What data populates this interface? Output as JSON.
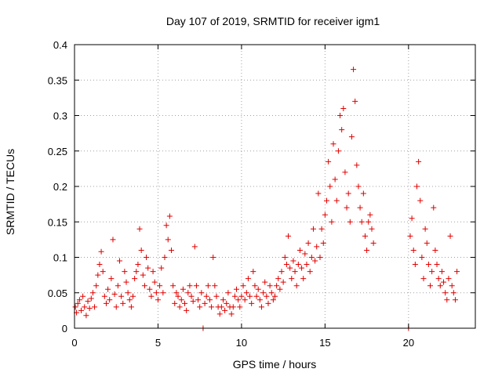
{
  "chart_data": {
    "type": "scatter",
    "title": "Day 107 of 2019, SRMTID for receiver igm1",
    "xlabel": "GPS time / hours",
    "ylabel": "SRMTID / TECUs",
    "xlim": [
      0,
      24
    ],
    "ylim": [
      0,
      0.4
    ],
    "xticks": [
      0,
      5,
      10,
      15,
      20
    ],
    "xtick_labels": [
      "0",
      "5",
      "10",
      "15",
      "20"
    ],
    "yticks": [
      0,
      0.05,
      0.1,
      0.15,
      0.2,
      0.25,
      0.3,
      0.35,
      0.4
    ],
    "ytick_labels": [
      "0",
      "0.05",
      "0.1",
      "0.15",
      "0.2",
      "0.25",
      "0.3",
      "0.35",
      "0.4"
    ],
    "grid": true,
    "marker": "plus",
    "color": "#e00000",
    "series": [
      {
        "name": "igm1",
        "points": [
          [
            0.05,
            0.03
          ],
          [
            0.12,
            0.022
          ],
          [
            0.2,
            0.035
          ],
          [
            0.3,
            0.04
          ],
          [
            0.4,
            0.025
          ],
          [
            0.5,
            0.045
          ],
          [
            0.6,
            0.03
          ],
          [
            0.7,
            0.018
          ],
          [
            0.8,
            0.038
          ],
          [
            0.9,
            0.028
          ],
          [
            1.0,
            0.042
          ],
          [
            1.1,
            0.05
          ],
          [
            1.2,
            0.03
          ],
          [
            1.3,
            0.06
          ],
          [
            1.4,
            0.075
          ],
          [
            1.5,
            0.09
          ],
          [
            1.6,
            0.108
          ],
          [
            1.7,
            0.08
          ],
          [
            1.8,
            0.045
          ],
          [
            1.9,
            0.035
          ],
          [
            2.0,
            0.055
          ],
          [
            2.1,
            0.04
          ],
          [
            2.2,
            0.07
          ],
          [
            2.3,
            0.125
          ],
          [
            2.4,
            0.048
          ],
          [
            2.5,
            0.03
          ],
          [
            2.6,
            0.06
          ],
          [
            2.7,
            0.095
          ],
          [
            2.8,
            0.045
          ],
          [
            2.9,
            0.035
          ],
          [
            3.0,
            0.08
          ],
          [
            3.1,
            0.065
          ],
          [
            3.2,
            0.05
          ],
          [
            3.3,
            0.04
          ],
          [
            3.4,
            0.03
          ],
          [
            3.5,
            0.045
          ],
          [
            3.6,
            0.07
          ],
          [
            3.7,
            0.08
          ],
          [
            3.8,
            0.09
          ],
          [
            3.9,
            0.14
          ],
          [
            4.0,
            0.11
          ],
          [
            4.1,
            0.075
          ],
          [
            4.2,
            0.06
          ],
          [
            4.3,
            0.1
          ],
          [
            4.4,
            0.085
          ],
          [
            4.5,
            0.055
          ],
          [
            4.6,
            0.045
          ],
          [
            4.7,
            0.08
          ],
          [
            4.8,
            0.065
          ],
          [
            4.9,
            0.05
          ],
          [
            5.0,
            0.04
          ],
          [
            5.1,
            0.06
          ],
          [
            5.2,
            0.085
          ],
          [
            5.3,
            0.05
          ],
          [
            5.4,
            0.1
          ],
          [
            5.5,
            0.145
          ],
          [
            5.6,
            0.125
          ],
          [
            5.7,
            0.158
          ],
          [
            5.8,
            0.11
          ],
          [
            5.9,
            0.06
          ],
          [
            6.0,
            0.035
          ],
          [
            6.1,
            0.05
          ],
          [
            6.2,
            0.045
          ],
          [
            6.3,
            0.03
          ],
          [
            6.4,
            0.04
          ],
          [
            6.5,
            0.055
          ],
          [
            6.6,
            0.035
          ],
          [
            6.7,
            0.025
          ],
          [
            6.8,
            0.05
          ],
          [
            6.9,
            0.06
          ],
          [
            7.0,
            0.045
          ],
          [
            7.1,
            0.038
          ],
          [
            7.2,
            0.115
          ],
          [
            7.3,
            0.06
          ],
          [
            7.4,
            0.04
          ],
          [
            7.5,
            0.03
          ],
          [
            7.6,
            0.05
          ],
          [
            7.7,
            0.0
          ],
          [
            7.8,
            0.035
          ],
          [
            7.9,
            0.045
          ],
          [
            8.0,
            0.06
          ],
          [
            8.1,
            0.04
          ],
          [
            8.2,
            0.03
          ],
          [
            8.3,
            0.1
          ],
          [
            8.4,
            0.06
          ],
          [
            8.5,
            0.045
          ],
          [
            8.6,
            0.03
          ],
          [
            8.7,
            0.02
          ],
          [
            8.8,
            0.03
          ],
          [
            8.9,
            0.04
          ],
          [
            9.0,
            0.025
          ],
          [
            9.1,
            0.035
          ],
          [
            9.2,
            0.05
          ],
          [
            9.3,
            0.03
          ],
          [
            9.4,
            0.02
          ],
          [
            9.5,
            0.03
          ],
          [
            9.6,
            0.045
          ],
          [
            9.7,
            0.055
          ],
          [
            9.8,
            0.04
          ],
          [
            9.9,
            0.03
          ],
          [
            10.0,
            0.045
          ],
          [
            10.1,
            0.06
          ],
          [
            10.2,
            0.04
          ],
          [
            10.3,
            0.05
          ],
          [
            10.4,
            0.07
          ],
          [
            10.5,
            0.045
          ],
          [
            10.6,
            0.035
          ],
          [
            10.7,
            0.08
          ],
          [
            10.8,
            0.06
          ],
          [
            10.9,
            0.045
          ],
          [
            11.0,
            0.055
          ],
          [
            11.1,
            0.04
          ],
          [
            11.2,
            0.03
          ],
          [
            11.3,
            0.05
          ],
          [
            11.4,
            0.065
          ],
          [
            11.5,
            0.045
          ],
          [
            11.6,
            0.035
          ],
          [
            11.7,
            0.06
          ],
          [
            11.8,
            0.05
          ],
          [
            11.9,
            0.04
          ],
          [
            12.0,
            0.045
          ],
          [
            12.1,
            0.06
          ],
          [
            12.2,
            0.07
          ],
          [
            12.3,
            0.055
          ],
          [
            12.4,
            0.08
          ],
          [
            12.5,
            0.065
          ],
          [
            12.6,
            0.1
          ],
          [
            12.7,
            0.09
          ],
          [
            12.8,
            0.13
          ],
          [
            12.9,
            0.085
          ],
          [
            13.0,
            0.07
          ],
          [
            13.1,
            0.095
          ],
          [
            13.2,
            0.08
          ],
          [
            13.3,
            0.06
          ],
          [
            13.4,
            0.09
          ],
          [
            13.5,
            0.11
          ],
          [
            13.6,
            0.085
          ],
          [
            13.7,
            0.07
          ],
          [
            13.8,
            0.105
          ],
          [
            13.9,
            0.09
          ],
          [
            14.0,
            0.12
          ],
          [
            14.1,
            0.08
          ],
          [
            14.2,
            0.1
          ],
          [
            14.3,
            0.14
          ],
          [
            14.4,
            0.095
          ],
          [
            14.5,
            0.115
          ],
          [
            14.6,
            0.19
          ],
          [
            14.7,
            0.1
          ],
          [
            14.8,
            0.14
          ],
          [
            14.9,
            0.12
          ],
          [
            15.0,
            0.16
          ],
          [
            15.1,
            0.18
          ],
          [
            15.2,
            0.235
          ],
          [
            15.3,
            0.2
          ],
          [
            15.4,
            0.15
          ],
          [
            15.5,
            0.26
          ],
          [
            15.6,
            0.21
          ],
          [
            15.7,
            0.18
          ],
          [
            15.8,
            0.25
          ],
          [
            15.9,
            0.3
          ],
          [
            16.0,
            0.28
          ],
          [
            16.1,
            0.31
          ],
          [
            16.2,
            0.22
          ],
          [
            16.3,
            0.17
          ],
          [
            16.4,
            0.19
          ],
          [
            16.5,
            0.15
          ],
          [
            16.6,
            0.27
          ],
          [
            16.7,
            0.365
          ],
          [
            16.8,
            0.32
          ],
          [
            16.9,
            0.23
          ],
          [
            17.0,
            0.2
          ],
          [
            17.1,
            0.17
          ],
          [
            17.2,
            0.15
          ],
          [
            17.3,
            0.19
          ],
          [
            17.4,
            0.13
          ],
          [
            17.5,
            0.11
          ],
          [
            17.6,
            0.15
          ],
          [
            17.7,
            0.16
          ],
          [
            17.8,
            0.14
          ],
          [
            17.9,
            0.12
          ],
          [
            20.0,
            0.0
          ],
          [
            20.1,
            0.13
          ],
          [
            20.2,
            0.155
          ],
          [
            20.3,
            0.11
          ],
          [
            20.4,
            0.09
          ],
          [
            20.5,
            0.2
          ],
          [
            20.6,
            0.235
          ],
          [
            20.7,
            0.18
          ],
          [
            20.8,
            0.1
          ],
          [
            20.9,
            0.07
          ],
          [
            21.0,
            0.14
          ],
          [
            21.1,
            0.12
          ],
          [
            21.2,
            0.09
          ],
          [
            21.3,
            0.06
          ],
          [
            21.4,
            0.08
          ],
          [
            21.5,
            0.17
          ],
          [
            21.6,
            0.11
          ],
          [
            21.7,
            0.09
          ],
          [
            21.8,
            0.07
          ],
          [
            21.9,
            0.06
          ],
          [
            22.0,
            0.08
          ],
          [
            22.1,
            0.065
          ],
          [
            22.2,
            0.05
          ],
          [
            22.3,
            0.04
          ],
          [
            22.4,
            0.07
          ],
          [
            22.5,
            0.13
          ],
          [
            22.6,
            0.06
          ],
          [
            22.7,
            0.05
          ],
          [
            22.8,
            0.04
          ],
          [
            22.9,
            0.08
          ]
        ]
      }
    ]
  }
}
